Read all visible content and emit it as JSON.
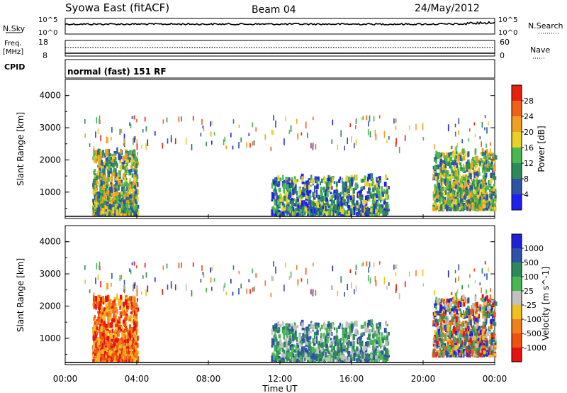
{
  "header": {
    "station": "Syowa East (fitACF)",
    "beam": "Beam 04",
    "date": "24/May/2012"
  },
  "top_panels": {
    "nsky_label": "N.Sky",
    "nsky_ticks": [
      "10^5",
      "10^0"
    ],
    "nsearch_label": "N.Search",
    "nsearch_ticks": [
      "10^5",
      "10^0"
    ],
    "freq_label": "Freq.",
    "freq_unit": "[MHz]",
    "freq_ticks": [
      "18",
      "8"
    ],
    "nave_label": "Nave",
    "nave_ticks": [
      "60",
      "0"
    ],
    "cpid_label": "CPID",
    "cpid_text": "normal (fast) 151 RF"
  },
  "chart_data": [
    {
      "type": "heatmap",
      "title": "",
      "quantity": "Power",
      "ylabel": "Slant Range [km]",
      "xlabel": "Time UT",
      "ylim": [
        180,
        4500
      ],
      "xlim": [
        "00:00",
        "24:00"
      ],
      "yticks": [
        "1000",
        "2000",
        "3000",
        "4000"
      ],
      "colorbar": {
        "label": "Power [dB]",
        "ticks": [
          "4",
          "8",
          "12",
          "16",
          "20",
          "24",
          "28"
        ],
        "range": [
          0,
          32
        ],
        "colors": [
          "#1f1ff0",
          "#2e52a8",
          "#2e8a5a",
          "#48b850",
          "#e8d028",
          "#f0a020",
          "#f06018",
          "#e82010"
        ]
      },
      "echo_regions": [
        {
          "t_start": 1.5,
          "t_end": 4.0,
          "range_low": 250,
          "range_high": 2200,
          "level": "high"
        },
        {
          "t_start": 11.5,
          "t_end": 18.0,
          "range_low": 250,
          "range_high": 1400,
          "level": "mid"
        },
        {
          "t_start": 20.5,
          "t_end": 24.0,
          "range_low": 400,
          "range_high": 2200,
          "level": "high"
        }
      ]
    },
    {
      "type": "heatmap",
      "title": "",
      "quantity": "Velocity",
      "ylabel": "Slant Range [km]",
      "xlabel": "Time UT",
      "ylim": [
        180,
        4500
      ],
      "xlim": [
        "00:00",
        "24:00"
      ],
      "yticks": [
        "1000",
        "2000",
        "3000",
        "4000"
      ],
      "colorbar": {
        "label": "Velocity [m s^-1]",
        "ticks": [
          "1000",
          "500",
          "100",
          "25",
          "-25",
          "-100",
          "-500",
          "-1000"
        ],
        "colors": [
          "#2020d8",
          "#2e52a8",
          "#2e8a5a",
          "#48b850",
          "#c0c0c0",
          "#f0c020",
          "#f08018",
          "#f05010",
          "#e81010"
        ]
      },
      "echo_regions": [
        {
          "t_start": 1.5,
          "t_end": 4.0,
          "range_low": 250,
          "range_high": 2200,
          "level": "negative"
        },
        {
          "t_start": 11.5,
          "t_end": 18.0,
          "range_low": 250,
          "range_high": 1400,
          "level": "positive"
        },
        {
          "t_start": 20.5,
          "t_end": 24.0,
          "range_low": 400,
          "range_high": 2200,
          "level": "mixed"
        }
      ]
    }
  ],
  "x_axis": {
    "ticks": [
      "00:00",
      "04:00",
      "08:00",
      "12:00",
      "16:00",
      "20:00",
      "00:00"
    ],
    "label": "Time UT"
  }
}
